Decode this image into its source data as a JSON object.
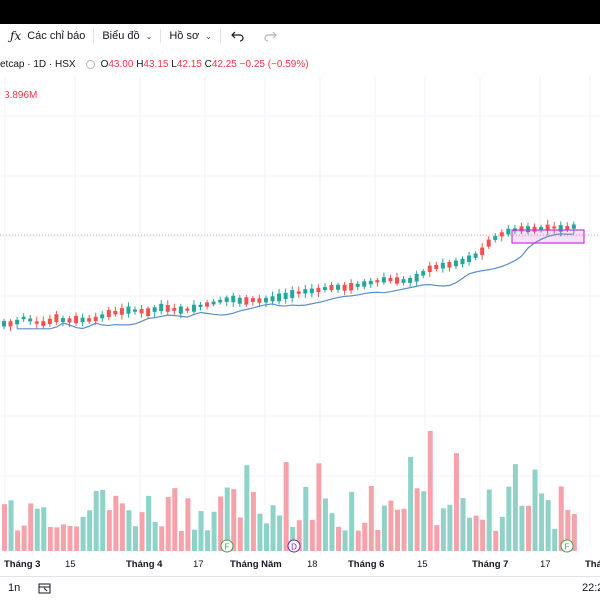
{
  "toolbar": {
    "indicators_label": "Các chỉ báo",
    "chart_label": "Biểu đồ",
    "profile_label": "Hồ sơ"
  },
  "legend": {
    "symbol": "etcap · 1D · HSX",
    "open_key": "O",
    "open": "43.00",
    "high_key": "H",
    "high": "43.15",
    "low_key": "L",
    "low": "42.15",
    "close_key": "C",
    "close": "42.25",
    "change": "−0.25 (−0.59%)"
  },
  "volume_label": "3.896M",
  "x_labels": [
    {
      "text": "Tháng 3",
      "bold": true
    },
    {
      "text": "15",
      "bold": false
    },
    {
      "text": "Tháng 4",
      "bold": true
    },
    {
      "text": "17",
      "bold": false
    },
    {
      "text": "Tháng Năm",
      "bold": true
    },
    {
      "text": "18",
      "bold": false
    },
    {
      "text": "Tháng 6",
      "bold": true
    },
    {
      "text": "15",
      "bold": false
    },
    {
      "text": "Tháng 7",
      "bold": true
    },
    {
      "text": "17",
      "bold": false
    },
    {
      "text": "Thá",
      "bold": true
    }
  ],
  "markers": [
    {
      "letter": "F",
      "color": "#43a047"
    },
    {
      "letter": "D",
      "color": "#7b1fa2"
    },
    {
      "letter": "F",
      "color": "#43a047"
    }
  ],
  "bottom": {
    "interval": "1n",
    "time": "22:2"
  },
  "colors": {
    "up": "#26a69a",
    "down": "#ef5350",
    "vol_up": "#8fd3c8",
    "vol_down": "#f5a3ab",
    "ma": "#5b8fc9",
    "highlight": "#c03ad6"
  },
  "chart_data": {
    "type": "candlestick",
    "title": "",
    "price_trend": {
      "start": 36.0,
      "end": 42.25
    },
    "last_ohlc": {
      "open": 43.0,
      "high": 43.15,
      "low": 42.15,
      "close": 42.25
    },
    "volume_last": "3.896M",
    "x_tick_labels": [
      "Tháng 3",
      "15",
      "Tháng 4",
      "17",
      "Tháng Năm",
      "18",
      "Tháng 6",
      "15",
      "Tháng 7",
      "17"
    ],
    "series": [
      {
        "values": [
          1.0,
          1.0,
          1.9,
          1.2,
          1.0,
          1.8,
          1.4,
          1.6,
          1.5,
          1.7,
          2.4,
          2.6,
          2.9,
          2.8,
          2.6,
          3.3,
          3.1,
          2.9,
          3.0,
          3.5,
          3.8,
          4.2,
          4.5,
          4.1,
          4.3,
          4.2,
          4.5,
          4.8,
          5.2,
          5.5,
          5.6,
          5.9,
          6.1,
          6.0,
          6.3,
          6.6,
          6.9,
          7.2,
          7.0,
          6.9,
          7.5,
          8.6,
          9.0,
          9.2,
          9.5,
          10.1,
          10.8,
          12.6,
          13.4,
          14.0,
          14.2,
          14.1,
          14.3,
          14.4,
          14.2,
          14.5
        ]
      }
    ]
  }
}
